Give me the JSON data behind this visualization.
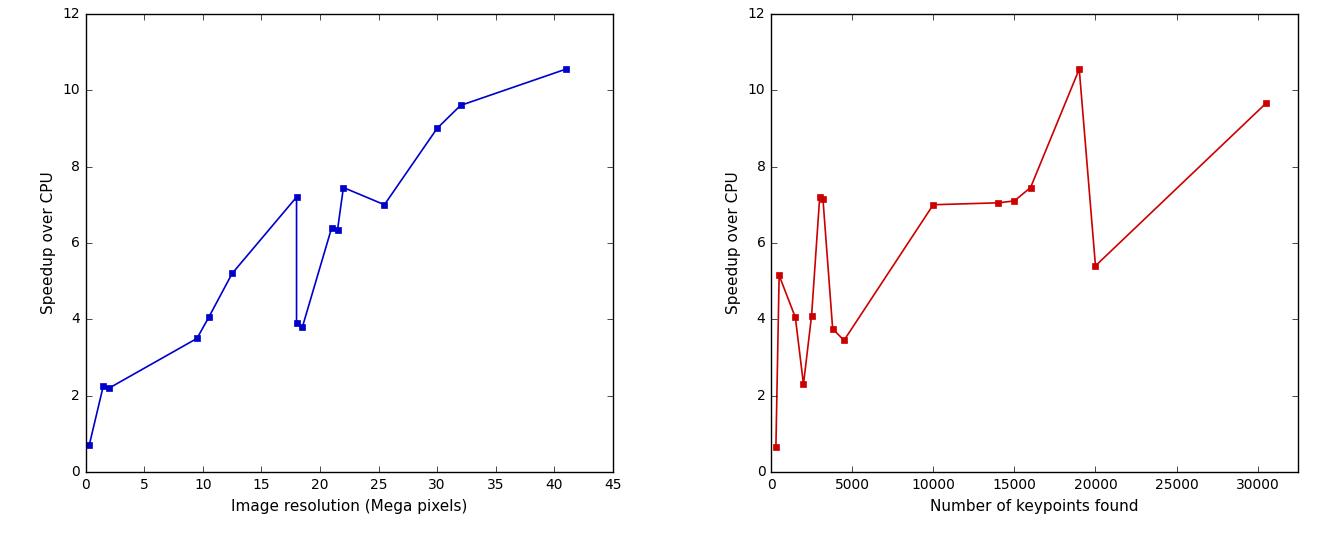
{
  "left_x": [
    0.3,
    1.5,
    2.0,
    9.5,
    10.5,
    12.5,
    18.0,
    18.0,
    18.5,
    21.0,
    21.5,
    22.0,
    25.5,
    30.0,
    32.0,
    41.0
  ],
  "left_y": [
    0.7,
    2.25,
    2.2,
    3.5,
    4.05,
    5.2,
    7.2,
    3.9,
    3.8,
    6.4,
    6.35,
    7.45,
    7.0,
    9.0,
    9.6,
    10.55
  ],
  "right_x": [
    300,
    500,
    1500,
    2000,
    2500,
    3000,
    3200,
    3800,
    4500,
    10000,
    14000,
    15000,
    16000,
    19000,
    20000,
    30500
  ],
  "right_y": [
    0.65,
    5.15,
    4.05,
    2.3,
    4.1,
    7.2,
    7.15,
    3.75,
    3.45,
    7.0,
    7.05,
    7.1,
    7.45,
    10.55,
    5.4,
    9.65
  ],
  "left_xlabel": "Image resolution (Mega pixels)",
  "right_xlabel": "Number of keypoints found",
  "ylabel": "Speedup over CPU",
  "left_xlim": [
    0,
    45
  ],
  "right_xlim": [
    0,
    32500
  ],
  "ylim": [
    0,
    12
  ],
  "left_xticks": [
    0,
    5,
    10,
    15,
    20,
    25,
    30,
    35,
    40,
    45
  ],
  "right_xticks": [
    0,
    5000,
    10000,
    15000,
    20000,
    25000,
    30000
  ],
  "yticks": [
    0,
    2,
    4,
    6,
    8,
    10,
    12
  ],
  "line_color_left": "#0000cc",
  "line_color_right": "#cc0000",
  "marker": "s",
  "markersize": 5,
  "linewidth": 1.2
}
